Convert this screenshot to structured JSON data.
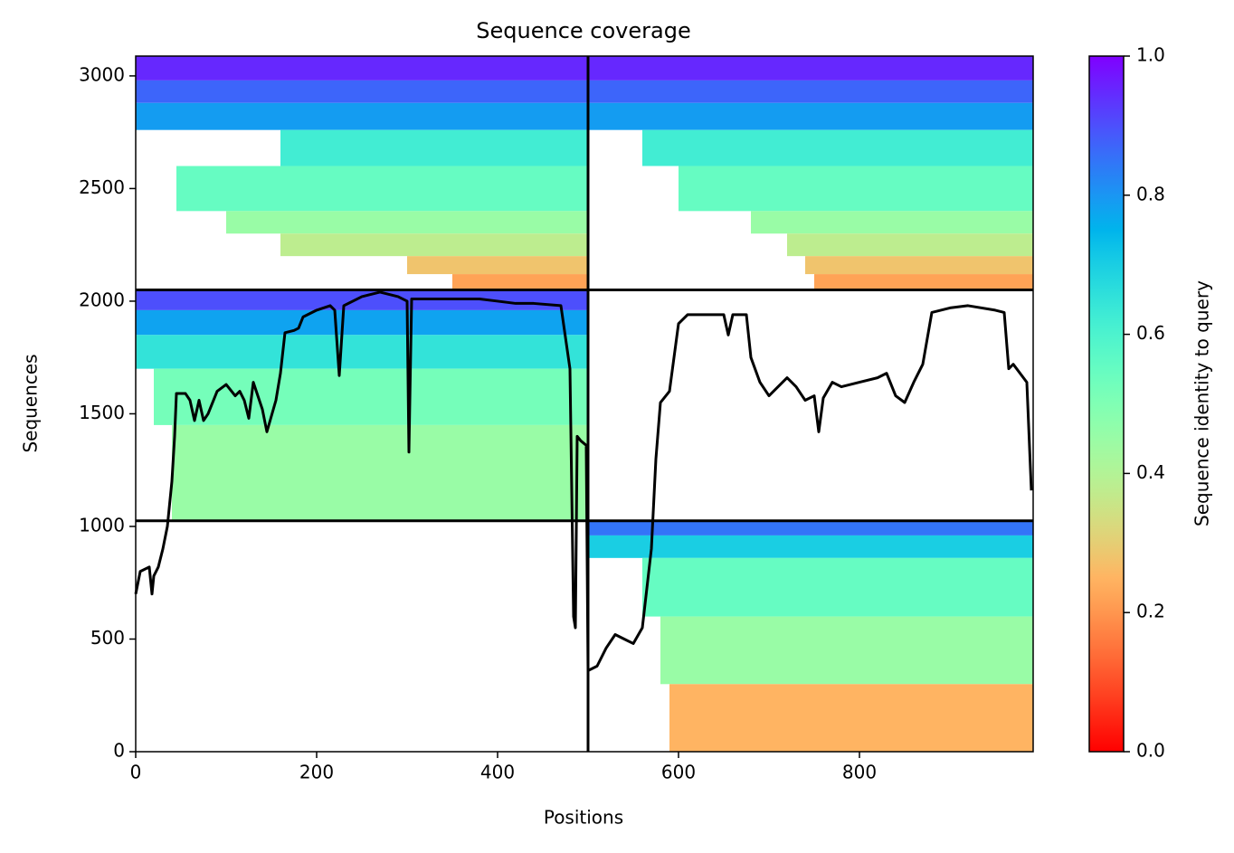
{
  "chart_data": {
    "type": "coverage",
    "title": "Sequence coverage",
    "x_label": "Positions",
    "y_label": "Sequences",
    "colorbar_label": "Sequence identity to query",
    "colormap": "rainbow_r",
    "xlim": [
      0,
      992
    ],
    "ylim": [
      0,
      3088
    ],
    "xticks": [
      0,
      200,
      400,
      600,
      800
    ],
    "yticks": [
      0,
      500,
      1000,
      1500,
      2000,
      2500,
      3000
    ],
    "clim": [
      0,
      1
    ],
    "cticks": [
      {
        "value": 0,
        "label": "0.0"
      },
      {
        "value": 0.2,
        "label": "0.2"
      },
      {
        "value": 0.4,
        "label": "0.4"
      },
      {
        "value": 0.6,
        "label": "0.6"
      },
      {
        "value": 0.8,
        "label": "0.8"
      },
      {
        "value": 1,
        "label": "1.0"
      }
    ],
    "boundary_x": [
      500
    ],
    "boundary_y": [
      1025,
      2050
    ],
    "blocks": [
      {
        "x": [
          0,
          992
        ],
        "y": [
          2980,
          3088
        ],
        "identity": 0.95
      },
      {
        "x": [
          0,
          992
        ],
        "y": [
          2880,
          2980
        ],
        "identity": 0.87
      },
      {
        "x": [
          0,
          992
        ],
        "y": [
          2760,
          2880
        ],
        "identity": 0.79
      },
      {
        "x": [
          160,
          500
        ],
        "y": [
          2600,
          2760
        ],
        "identity": 0.62
      },
      {
        "x": [
          560,
          992
        ],
        "y": [
          2600,
          2760
        ],
        "identity": 0.62
      },
      {
        "x": [
          45,
          500
        ],
        "y": [
          2400,
          2600
        ],
        "identity": 0.55
      },
      {
        "x": [
          600,
          992
        ],
        "y": [
          2400,
          2600
        ],
        "identity": 0.55
      },
      {
        "x": [
          100,
          500
        ],
        "y": [
          2300,
          2400
        ],
        "identity": 0.45
      },
      {
        "x": [
          680,
          992
        ],
        "y": [
          2300,
          2400
        ],
        "identity": 0.45
      },
      {
        "x": [
          160,
          500
        ],
        "y": [
          2200,
          2300
        ],
        "identity": 0.38
      },
      {
        "x": [
          720,
          992
        ],
        "y": [
          2200,
          2300
        ],
        "identity": 0.38
      },
      {
        "x": [
          300,
          500
        ],
        "y": [
          2120,
          2200
        ],
        "identity": 0.28
      },
      {
        "x": [
          740,
          992
        ],
        "y": [
          2120,
          2200
        ],
        "identity": 0.28
      },
      {
        "x": [
          350,
          500
        ],
        "y": [
          2050,
          2120
        ],
        "identity": 0.22
      },
      {
        "x": [
          750,
          992
        ],
        "y": [
          2050,
          2120
        ],
        "identity": 0.22
      },
      {
        "x": [
          0,
          500
        ],
        "y": [
          1960,
          2050
        ],
        "identity": 0.9
      },
      {
        "x": [
          0,
          500
        ],
        "y": [
          1850,
          1960
        ],
        "identity": 0.78
      },
      {
        "x": [
          0,
          500
        ],
        "y": [
          1700,
          1850
        ],
        "identity": 0.65
      },
      {
        "x": [
          20,
          500
        ],
        "y": [
          1450,
          1700
        ],
        "identity": 0.52
      },
      {
        "x": [
          40,
          500
        ],
        "y": [
          1025,
          1450
        ],
        "identity": 0.45
      },
      {
        "x": [
          500,
          992
        ],
        "y": [
          960,
          1025
        ],
        "identity": 0.85
      },
      {
        "x": [
          500,
          992
        ],
        "y": [
          860,
          960
        ],
        "identity": 0.7
      },
      {
        "x": [
          560,
          992
        ],
        "y": [
          600,
          860
        ],
        "identity": 0.55
      },
      {
        "x": [
          580,
          992
        ],
        "y": [
          300,
          600
        ],
        "identity": 0.45
      },
      {
        "x": [
          590,
          992
        ],
        "y": [
          0,
          300
        ],
        "identity": 0.25
      }
    ],
    "series": [
      {
        "color": "#000000",
        "x": [
          0,
          5,
          15,
          18,
          20,
          25,
          30,
          35,
          40,
          43,
          45,
          55,
          60,
          65,
          70,
          75,
          80,
          90,
          100,
          110,
          115,
          120,
          125,
          130,
          140,
          145,
          155,
          160,
          165,
          175,
          180,
          185,
          200,
          215,
          220,
          225,
          230,
          250,
          270,
          290,
          300,
          302,
          305,
          330,
          380,
          400,
          420,
          440,
          470,
          480,
          484,
          486,
          488,
          492,
          498,
          500,
          510,
          520,
          530,
          540,
          550,
          560,
          570,
          575,
          580,
          590,
          595,
          600,
          610,
          640,
          650,
          655,
          660,
          675,
          680,
          690,
          700,
          710,
          720,
          730,
          740,
          750,
          755,
          760,
          770,
          780,
          800,
          820,
          830,
          840,
          850,
          860,
          870,
          880,
          900,
          920,
          950,
          960,
          965,
          970,
          985,
          990
        ],
        "values": [
          700,
          800,
          820,
          700,
          780,
          820,
          900,
          1000,
          1200,
          1400,
          1590,
          1590,
          1560,
          1470,
          1560,
          1470,
          1500,
          1600,
          1630,
          1580,
          1600,
          1560,
          1480,
          1640,
          1520,
          1420,
          1560,
          1680,
          1860,
          1870,
          1880,
          1930,
          1960,
          1980,
          1960,
          1670,
          1980,
          2020,
          2040,
          2020,
          2000,
          1330,
          2010,
          2010,
          2010,
          2000,
          1990,
          1990,
          1980,
          1700,
          600,
          550,
          1400,
          1380,
          1360,
          360,
          380,
          460,
          520,
          500,
          480,
          550,
          900,
          1300,
          1550,
          1600,
          1750,
          1900,
          1940,
          1940,
          1940,
          1850,
          1940,
          1940,
          1750,
          1640,
          1580,
          1620,
          1660,
          1620,
          1560,
          1580,
          1420,
          1570,
          1640,
          1620,
          1640,
          1660,
          1680,
          1580,
          1550,
          1640,
          1720,
          1950,
          1970,
          1980,
          1960,
          1950,
          1700,
          1720,
          1640,
          1160
        ]
      }
    ]
  }
}
